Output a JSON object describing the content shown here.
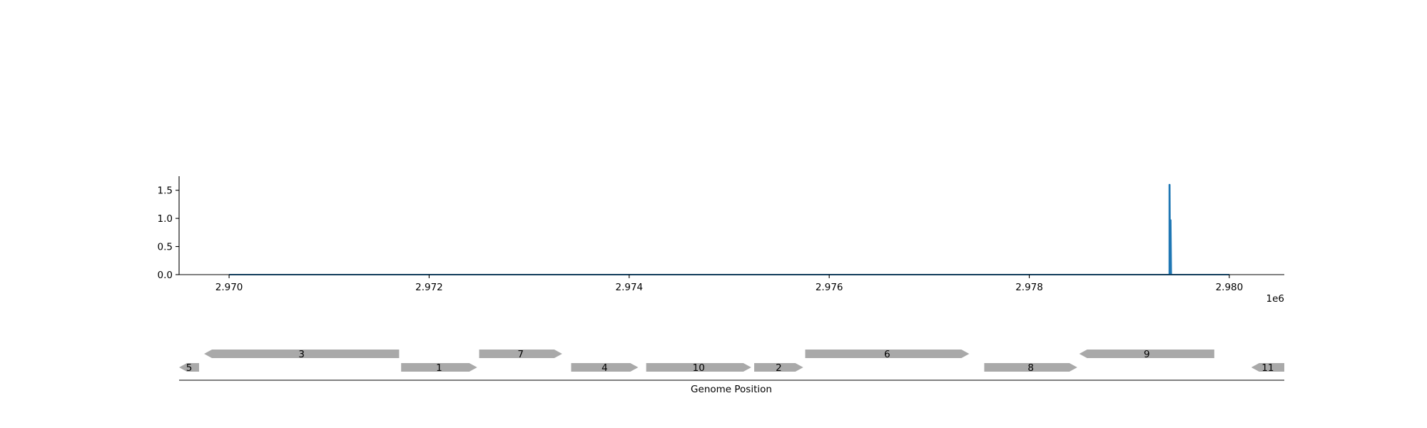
{
  "chart_data": [
    {
      "type": "line",
      "title": "",
      "xlabel": "",
      "ylabel": "",
      "x_offset_label": "1e6",
      "xlim": [
        2969500,
        2980550
      ],
      "ylim": [
        0,
        1.75
      ],
      "xticks": [
        2970000,
        2972000,
        2974000,
        2976000,
        2978000,
        2980000
      ],
      "xtick_labels": [
        "2.970",
        "2.972",
        "2.974",
        "2.976",
        "2.978",
        "2.980"
      ],
      "yticks": [
        0.0,
        0.5,
        1.0,
        1.5
      ],
      "ytick_labels": [
        "0.0",
        "0.5",
        "1.0",
        "1.5"
      ],
      "grid": false,
      "color": "#1f77b4",
      "series": [
        {
          "x": [
            2970000,
            2979390,
            2979400,
            2979400,
            2979405,
            2979410,
            2979415,
            2979415,
            2979420,
            2980000
          ],
          "y": [
            0,
            0,
            0,
            1.6,
            1.6,
            0,
            0,
            0.97,
            0,
            0
          ]
        }
      ]
    },
    {
      "type": "gene-track",
      "xlabel": "Genome Position",
      "xlim": [
        2969500,
        2980550
      ],
      "feature_color": "#a9a9a9",
      "features": [
        {
          "label": "5",
          "start": 2969500,
          "end": 2969700,
          "strand": -1,
          "row": 0
        },
        {
          "label": "3",
          "start": 2969750,
          "end": 2971700,
          "strand": -1,
          "row": 1
        },
        {
          "label": "1",
          "start": 2971720,
          "end": 2972480,
          "strand": 1,
          "row": 0
        },
        {
          "label": "7",
          "start": 2972500,
          "end": 2973330,
          "strand": 1,
          "row": 1
        },
        {
          "label": "4",
          "start": 2973420,
          "end": 2974090,
          "strand": 1,
          "row": 0
        },
        {
          "label": "10",
          "start": 2974170,
          "end": 2975220,
          "strand": 1,
          "row": 0
        },
        {
          "label": "2",
          "start": 2975250,
          "end": 2975740,
          "strand": 1,
          "row": 0
        },
        {
          "label": "6",
          "start": 2975760,
          "end": 2977400,
          "strand": 1,
          "row": 1
        },
        {
          "label": "8",
          "start": 2977550,
          "end": 2978480,
          "strand": 1,
          "row": 0
        },
        {
          "label": "9",
          "start": 2978500,
          "end": 2979850,
          "strand": -1,
          "row": 1
        },
        {
          "label": "11",
          "start": 2980220,
          "end": 2980550,
          "strand": -1,
          "row": 0
        }
      ]
    }
  ]
}
